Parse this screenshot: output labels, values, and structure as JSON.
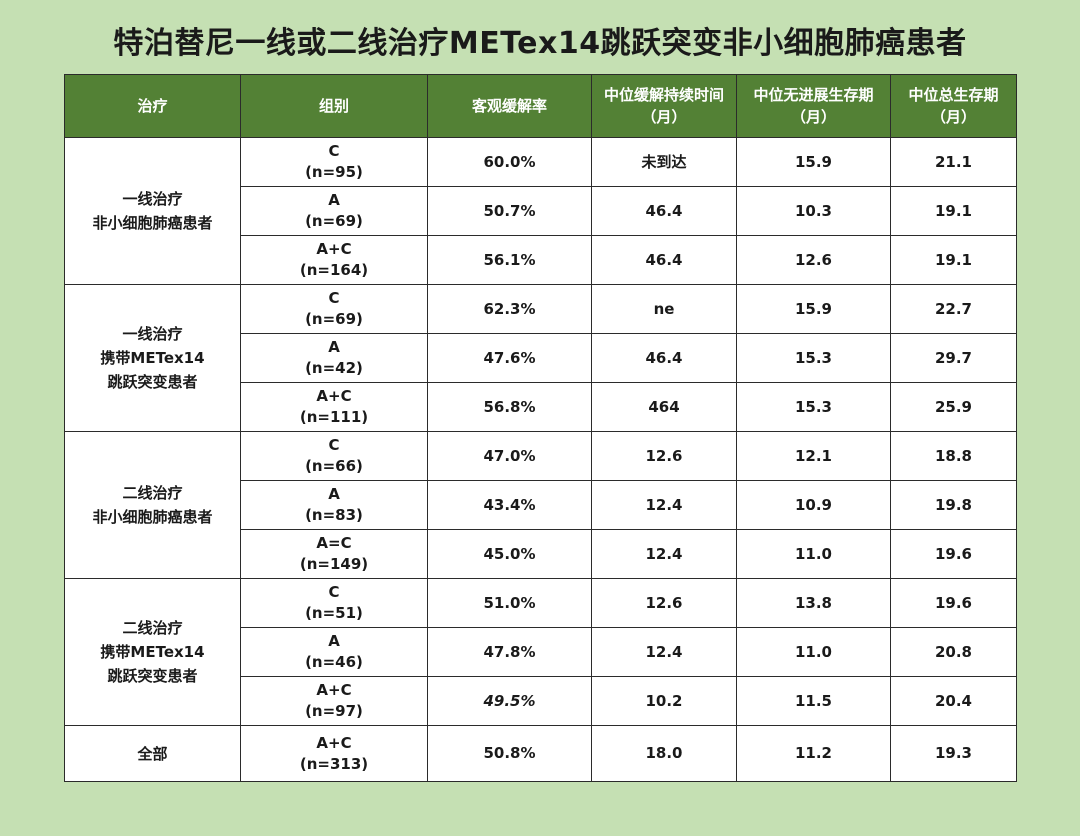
{
  "title": "特泊替尼一线或二线治疗METex14跳跃突变非小细胞肺癌患者",
  "table": {
    "headers": [
      {
        "lines": [
          "治疗"
        ]
      },
      {
        "lines": [
          "组别"
        ]
      },
      {
        "lines": [
          "客观缓解率"
        ]
      },
      {
        "lines": [
          "中位缓解持续时间",
          "（月）"
        ]
      },
      {
        "lines": [
          "中位无进展生存期",
          "（月）"
        ]
      },
      {
        "lines": [
          "中位总生存期",
          "（月）"
        ]
      }
    ],
    "groups": [
      {
        "treatment": [
          "一线治疗",
          "非小细胞肺癌患者"
        ],
        "rows": [
          {
            "group": "C",
            "n": "(n=95)",
            "orr": "60.0%",
            "dor": "未到达",
            "pfs": "15.9",
            "os": "21.1"
          },
          {
            "group": "A",
            "n": "(n=69)",
            "orr": "50.7%",
            "dor": "46.4",
            "pfs": "10.3",
            "os": "19.1"
          },
          {
            "group": "A+C",
            "n": "(n=164)",
            "orr": "56.1%",
            "dor": "46.4",
            "pfs": "12.6",
            "os": "19.1"
          }
        ]
      },
      {
        "treatment": [
          "一线治疗",
          "携带METex14",
          "跳跃突变患者"
        ],
        "rows": [
          {
            "group": "C",
            "n": "(n=69)",
            "orr": "62.3%",
            "dor": "ne",
            "pfs": "15.9",
            "os": "22.7"
          },
          {
            "group": "A",
            "n": "(n=42)",
            "orr": "47.6%",
            "dor": "46.4",
            "pfs": "15.3",
            "os": "29.7"
          },
          {
            "group": "A+C",
            "n": "(n=111)",
            "orr": "56.8%",
            "dor": "464",
            "pfs": "15.3",
            "os": "25.9"
          }
        ]
      },
      {
        "treatment": [
          "二线治疗",
          "非小细胞肺癌患者"
        ],
        "rows": [
          {
            "group": "C",
            "n": "(n=66)",
            "orr": "47.0%",
            "dor": "12.6",
            "pfs": "12.1",
            "os": "18.8"
          },
          {
            "group": "A",
            "n": "(n=83)",
            "orr": "43.4%",
            "dor": "12.4",
            "pfs": "10.9",
            "os": "19.8"
          },
          {
            "group": "A=C",
            "n": "(n=149)",
            "orr": "45.0%",
            "dor": "12.4",
            "pfs": "11.0",
            "os": "19.6"
          }
        ]
      },
      {
        "treatment": [
          "二线治疗",
          "携带METex14",
          "跳跃突变患者"
        ],
        "rows": [
          {
            "group": "C",
            "n": "(n=51)",
            "orr": "51.0%",
            "dor": "12.6",
            "pfs": "13.8",
            "os": "19.6"
          },
          {
            "group": "A",
            "n": "(n=46)",
            "orr": "47.8%",
            "dor": "12.4",
            "pfs": "11.0",
            "os": "20.8"
          },
          {
            "group": "A+C",
            "n": "(n=97)",
            "orr": "49.5%",
            "orr_italic": true,
            "dor": "10.2",
            "pfs": "11.5",
            "os": "20.4"
          }
        ]
      }
    ],
    "total": {
      "treatment": [
        "全部"
      ],
      "group": "A+C",
      "n": "(n=313)",
      "orr": "50.8%",
      "dor": "18.0",
      "pfs": "11.2",
      "os": "19.3"
    }
  },
  "colors": {
    "background": "#c5e0b3",
    "header_bg": "#538135",
    "header_text": "#ffffff",
    "cell_bg": "#ffffff",
    "border": "#2b2b2b"
  }
}
